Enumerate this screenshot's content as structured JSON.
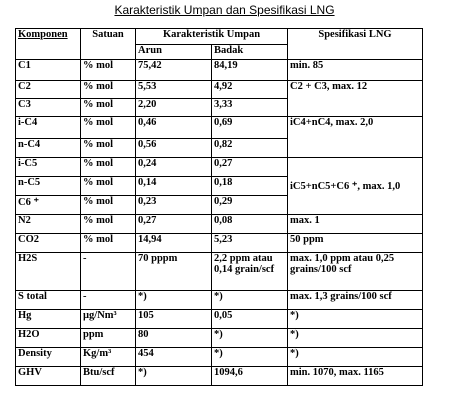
{
  "title": "Karakteristik Umpan dan Spesifikasi LNG",
  "headers": {
    "komponen": "Komponen",
    "satuan": "Satuan",
    "karakteristik": "Karakteristik Umpan",
    "spesifikasi": "Spesifikasi LNG",
    "arun": "Arun",
    "badak": "Badak"
  },
  "rows": [
    {
      "komponen": "C1",
      "satuan": "% mol",
      "arun": "75,42",
      "badak": "84,19",
      "spec": "min. 85"
    },
    {
      "komponen": "C2",
      "satuan": "% mol",
      "arun": "5,53",
      "badak": "4,92",
      "spec": "C2 + C3, max. 12"
    },
    {
      "komponen": "C3",
      "satuan": "% mol",
      "arun": "2,20",
      "badak": "3,33",
      "spec": ""
    },
    {
      "komponen": "i-C4",
      "satuan": "% mol",
      "arun": "0,46",
      "badak": "0,69",
      "spec": "iC4+nC4, max. 2,0"
    },
    {
      "komponen": "n-C4",
      "satuan": "% mol",
      "arun": "0,56",
      "badak": "0,82",
      "spec": ""
    },
    {
      "komponen": "i-C5",
      "satuan": "% mol",
      "arun": "0,24",
      "badak": "0,27",
      "spec": "iC5+nC5+C6 ⁺, max. 1,0"
    },
    {
      "komponen": "n-C5",
      "satuan": "% mol",
      "arun": "0,14",
      "badak": "0,18",
      "spec": ""
    },
    {
      "komponen": "C6 ⁺",
      "satuan": "% mol",
      "arun": "0,23",
      "badak": "0,29",
      "spec": ""
    },
    {
      "komponen": "N2",
      "satuan": "% mol",
      "arun": "0,27",
      "badak": "0,08",
      "spec": "max. 1"
    },
    {
      "komponen": "CO2",
      "satuan": "% mol",
      "arun": "14,94",
      "badak": "5,23",
      "spec": "50 ppm"
    },
    {
      "komponen": "H2S",
      "satuan": "-",
      "arun": "70 pppm",
      "badak": "2,2 ppm atau 0,14 grain/scf",
      "spec": "max. 1,0 ppm atau 0,25 grains/100 scf"
    },
    {
      "komponen": "S total",
      "satuan": "-",
      "arun": "*)",
      "badak": "*)",
      "spec": "max. 1,3 grains/100 scf"
    },
    {
      "komponen": "Hg",
      "satuan": "µg/Nm³",
      "arun": "105",
      "badak": "0,05",
      "spec": "*)"
    },
    {
      "komponen": "H2O",
      "satuan": "ppm",
      "arun": "80",
      "badak": "*)",
      "spec": "*)"
    },
    {
      "komponen": "Density",
      "satuan": "Kg/m³",
      "arun": "454",
      "badak": "*)",
      "spec": "*)"
    },
    {
      "komponen": "GHV",
      "satuan": "Btu/scf",
      "arun": "*)",
      "badak": "1094,6",
      "spec": "min. 1070, max. 1165"
    }
  ]
}
